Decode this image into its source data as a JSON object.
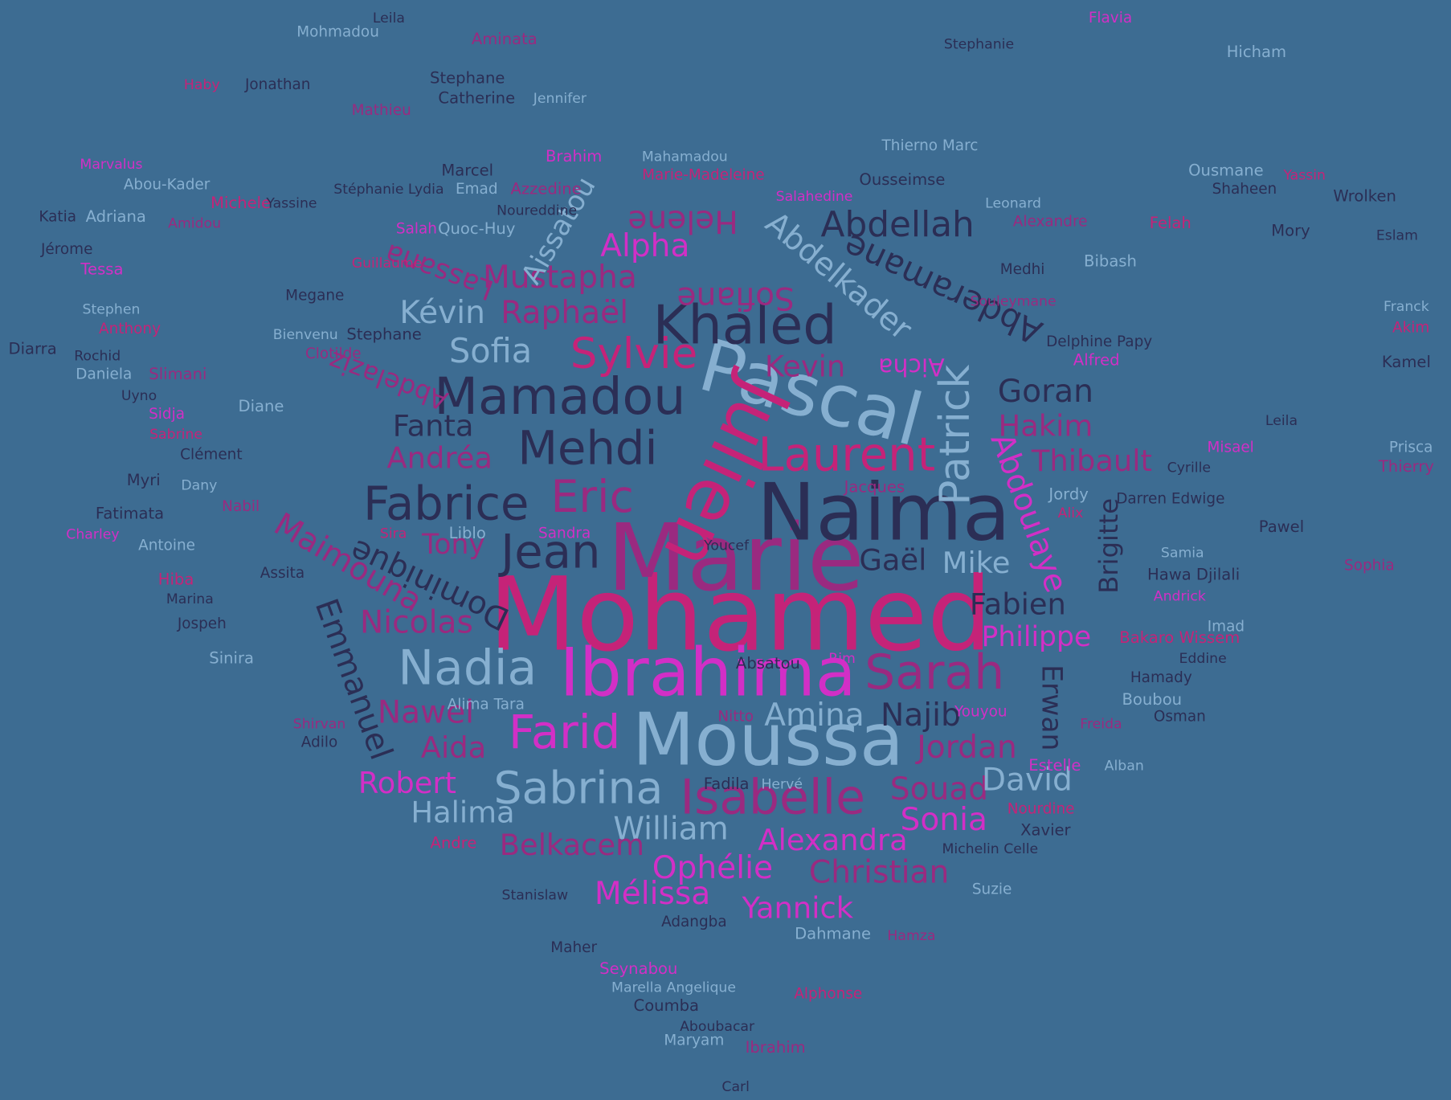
{
  "words": [
    "Mohamed",
    "Marie",
    "Naima",
    "Pascal",
    "Julien",
    "Ibrahima",
    "Moussa",
    "Khaled",
    "Mamadou",
    "Mehdi",
    "Fabrice",
    "Jean",
    "Eric",
    "Sylvie",
    "Laurent",
    "Patrick",
    "Abdoulaye",
    "Abderamane",
    "Abdelkader",
    "Abdellah",
    "Sarah",
    "Isabelle",
    "Sabrina",
    "Nadia",
    "Farid",
    "Amina",
    "Najib",
    "Jordan",
    "Souad",
    "David",
    "Sonia",
    "Alexandra",
    "Christian",
    "Ophélie",
    "Mélissa",
    "Yannick",
    "William",
    "Belkacem",
    "Halima",
    "Robert",
    "Aida",
    "Nawel",
    "Emmanuel",
    "Nicolas",
    "Dominique",
    "Maimouna",
    "Tony",
    "Andréa",
    "Fanta",
    "Sofia",
    "Kévin",
    "Raphaël",
    "Mustapha",
    "Sofiane",
    "Alpha",
    "Helene",
    "Lassana",
    "Aissatou",
    "Abdelaziz",
    "Kevin",
    "Aicha",
    "Goran",
    "Hakim",
    "Thibault",
    "Gaël",
    "Mike",
    "Fabien",
    "Philippe",
    "Brigitte",
    "Erwan",
    "Leila",
    "Mohmadou",
    "Aminata",
    "Stephanie",
    "Flavia",
    "Hicham",
    "Haby",
    "Jonathan",
    "Stephane",
    "Jennifer",
    "Mathieu",
    "Catherine",
    "Marvalus",
    "Abou-Kader",
    "Michele",
    "Yassine",
    "Katia",
    "Adriana",
    "Amidou",
    "Jérome",
    "Tessa",
    "Stephen",
    "Anthony",
    "Diarra",
    "Rochid",
    "Daniela",
    "Slimani",
    "Uyno",
    "Sidja",
    "Diane",
    "Sabrine",
    "Clément",
    "Myri",
    "Dany",
    "Nabil",
    "Fatimata",
    "Charley",
    "Antoine",
    "Hiba",
    "Marina",
    "Jospeh",
    "Sinira",
    "Shirvan",
    "Adilo",
    "Brahim",
    "Mahamadou",
    "Marie-Madeleine",
    "Marcel",
    "Stéphanie Lydia",
    "Emad",
    "Azzedine",
    "Noureddine",
    "Salah",
    "Quoc-Huy",
    "Guillaume",
    "Megane",
    "Stephane",
    "Bienvenu",
    "Clotilde",
    "Ousseimse",
    "Salahedine",
    "Thierno Marc",
    "Felah",
    "Eslam",
    "Medhi",
    "Bibash",
    "Souleymane",
    "Delphine Papy",
    "Alfred",
    "Franck",
    "Akim",
    "Kamel",
    "Leila",
    "Prisca",
    "Thierry",
    "Cyrille",
    "Misael",
    "Jordy",
    "Alix",
    "Darren Edwige",
    "Pawel",
    "Samia",
    "Sophia",
    "Hawa Djilali",
    "Andrick",
    "Imad",
    "Bakaro Wissem",
    "Eddine",
    "Hamady",
    "Boubou",
    "Freida",
    "Osman",
    "Estelle",
    "Alban",
    "Nourdine",
    "Xavier",
    "Michelin Celle",
    "Suzie",
    "Jacques",
    "Youcef",
    "Sandra",
    "Liblo",
    "Sira",
    "Assita",
    "Fadila",
    "Hervé",
    "Nitto",
    "Absatou",
    "Rim",
    "Alima Tara",
    "Andre",
    "Stanislaw",
    "Adangba",
    "Dahmane",
    "Hamza",
    "Maher",
    "Seynabou",
    "Marella Angelique",
    "Alphonse",
    "Coumba",
    "Aboubacar",
    "Maryam",
    "Ibrahim",
    "Carl",
    "Youyou",
    "Ousmane",
    "Yassin",
    "Shaheen",
    "Wrolken",
    "Leonard",
    "Alexandre",
    "Mory"
  ]
}
